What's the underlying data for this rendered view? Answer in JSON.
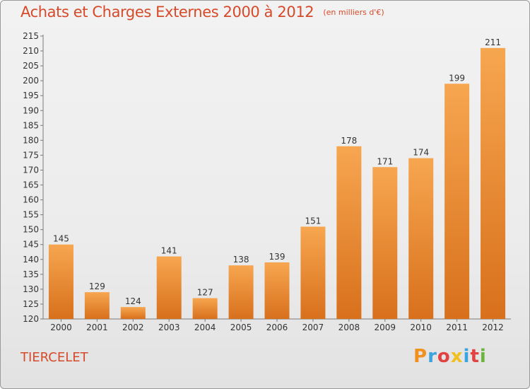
{
  "header": {
    "title": "Achats et Charges Externes 2000 à 2012",
    "subtitle": "(en milliers d'€)"
  },
  "footer": {
    "commune": "TIERCELET",
    "brand_letters": [
      "P",
      "r",
      "o",
      "x",
      "i",
      "t",
      "i"
    ],
    "brand_colors": [
      "#f0901e",
      "#3aa4de",
      "#e24242",
      "#f0c020",
      "#3aa4de",
      "#e24242",
      "#6bb43c"
    ]
  },
  "colors": {
    "accent": "#d64a2a",
    "bar_light": "#f7a650",
    "bar_dark": "#d8701c"
  },
  "chart_data": {
    "type": "bar",
    "categories": [
      "2000",
      "2001",
      "2002",
      "2003",
      "2004",
      "2005",
      "2006",
      "2007",
      "2008",
      "2009",
      "2010",
      "2011",
      "2012"
    ],
    "values": [
      145,
      129,
      124,
      141,
      127,
      138,
      139,
      151,
      178,
      171,
      174,
      199,
      211
    ],
    "yticks": [
      120,
      125,
      130,
      135,
      140,
      145,
      150,
      155,
      160,
      165,
      170,
      175,
      180,
      185,
      190,
      195,
      200,
      205,
      210,
      215
    ],
    "ylim": [
      120,
      215
    ],
    "grid": false,
    "legend": "none"
  }
}
